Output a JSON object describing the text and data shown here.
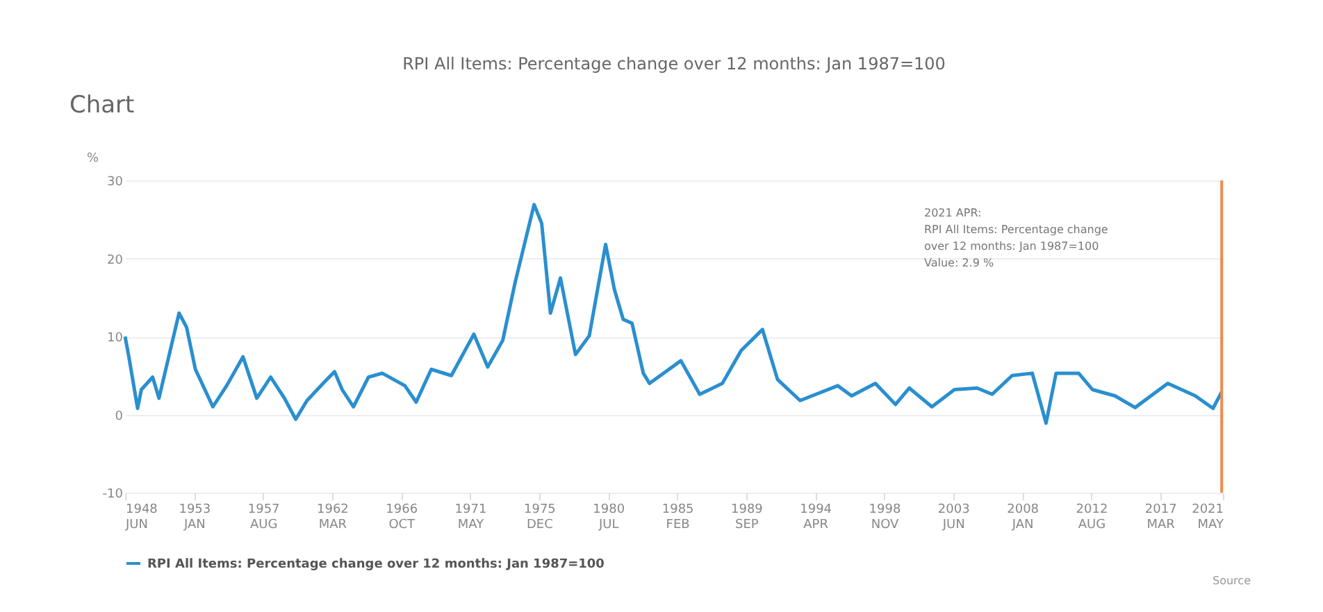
{
  "chart_data": {
    "type": "line",
    "title": "RPI All Items: Percentage change over 12 months: Jan 1987=100",
    "ylabel": "%",
    "x": [
      "1948-06",
      "1948-09",
      "1949-04",
      "1949-07",
      "1950-04",
      "1950-09",
      "1952-01",
      "1952-07",
      "1953-02",
      "1954-04",
      "1955-03",
      "1956-04",
      "1957-03",
      "1958-02",
      "1959-01",
      "1959-10",
      "1960-07",
      "1961-09",
      "1962-05",
      "1962-11",
      "1963-08",
      "1964-08",
      "1965-07",
      "1967-01",
      "1967-10",
      "1968-10",
      "1970-02",
      "1971-08",
      "1972-07",
      "1973-07",
      "1974-05",
      "1975-08",
      "1976-02",
      "1976-09",
      "1977-05",
      "1978-05",
      "1979-04",
      "1980-05",
      "1980-12",
      "1981-07",
      "1982-02",
      "1982-11",
      "1983-04",
      "1985-05",
      "1986-08",
      "1988-02",
      "1989-05",
      "1990-10",
      "1991-10",
      "1993-04",
      "1995-10",
      "1996-09",
      "1998-04",
      "1999-08",
      "2000-07",
      "2002-01",
      "2003-07",
      "2005-01",
      "2006-01",
      "2007-05",
      "2008-09",
      "2009-08",
      "2010-04",
      "2011-10",
      "2012-09",
      "2014-03",
      "2015-07",
      "2017-09",
      "2019-07",
      "2020-09",
      "2021-04"
    ],
    "series": [
      {
        "name": "RPI All Items: Percentage change over 12 months: Jan 1987=100",
        "color": "#2a8fcf",
        "values": [
          10.0,
          7.4,
          0.8,
          3.2,
          4.8,
          2.1,
          13.0,
          11.2,
          5.8,
          1.0,
          3.7,
          7.4,
          2.1,
          4.8,
          2.1,
          -0.6,
          1.8,
          4.2,
          5.5,
          3.2,
          1.0,
          4.8,
          5.3,
          3.7,
          1.6,
          5.8,
          5.0,
          10.3,
          6.1,
          9.5,
          17.0,
          26.9,
          24.5,
          13.0,
          17.5,
          7.7,
          10.1,
          21.8,
          16.0,
          12.2,
          11.7,
          5.3,
          4.0,
          6.9,
          2.6,
          4.0,
          8.2,
          10.9,
          4.5,
          1.8,
          3.7,
          2.4,
          4.0,
          1.3,
          3.4,
          1.0,
          3.2,
          3.4,
          2.6,
          5.0,
          5.3,
          -1.1,
          5.3,
          5.3,
          3.2,
          2.4,
          0.9,
          4.0,
          2.4,
          0.8,
          2.9
        ]
      }
    ],
    "xlim": [
      "1948-06",
      "2021-05"
    ],
    "xticks": [
      {
        "value": "1948-06",
        "label": "1948 JUN"
      },
      {
        "value": "1953-01",
        "label": "1953 JAN"
      },
      {
        "value": "1957-08",
        "label": "1957 AUG"
      },
      {
        "value": "1962-03",
        "label": "1962 MAR"
      },
      {
        "value": "1966-10",
        "label": "1966 OCT"
      },
      {
        "value": "1971-05",
        "label": "1971 MAY"
      },
      {
        "value": "1975-12",
        "label": "1975 DEC"
      },
      {
        "value": "1980-07",
        "label": "1980 JUL"
      },
      {
        "value": "1985-02",
        "label": "1985 FEB"
      },
      {
        "value": "1989-09",
        "label": "1989 SEP"
      },
      {
        "value": "1994-04",
        "label": "1994 APR"
      },
      {
        "value": "1998-11",
        "label": "1998 NOV"
      },
      {
        "value": "2003-06",
        "label": "2003 JUN"
      },
      {
        "value": "2008-01",
        "label": "2008 JAN"
      },
      {
        "value": "2012-08",
        "label": "2012 AUG"
      },
      {
        "value": "2017-03",
        "label": "2017 MAR"
      },
      {
        "value": "2021-05",
        "label": "2021 MAY"
      }
    ],
    "ylim": [
      -10,
      30
    ],
    "yticks": [
      -10,
      0,
      10,
      20,
      30
    ],
    "grid": "y",
    "legend": "bottom",
    "marker": "none",
    "line_style": "solid",
    "ref_lines": [
      {
        "axis": "x",
        "value": "2021-04",
        "color": "#f08a4b"
      }
    ],
    "annotations": [
      "Chart",
      "2021 APR:\nRPI All Items: Percentage change\nover 12 months: Jan 1987=100\nValue: 2.9 %",
      "Source"
    ]
  }
}
